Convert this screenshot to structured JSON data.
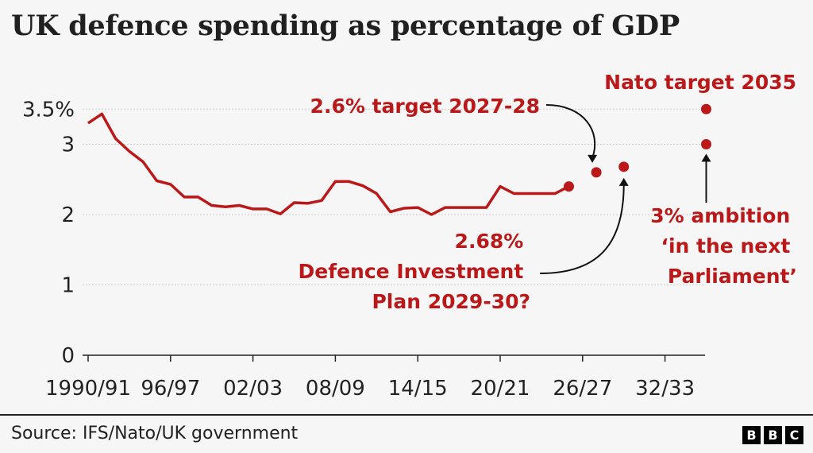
{
  "title": "UK defence spending as percentage of GDP",
  "source": "Source: IFS/Nato/UK government",
  "logo": [
    "B",
    "B",
    "C"
  ],
  "colors": {
    "line": "#bb1919",
    "grid": "#cccccc",
    "text": "#222222",
    "background": "#f6f6f6"
  },
  "chart_data": {
    "type": "line",
    "title": "UK defence spending as percentage of GDP",
    "xlabel": "",
    "ylabel": "",
    "ylim": [
      0,
      3.5
    ],
    "yticks": [
      0,
      1,
      2,
      3,
      3.5
    ],
    "ytick_labels": [
      "0",
      "1",
      "2",
      "3",
      "3.5%"
    ],
    "xticks": [
      1990,
      1996,
      2002,
      2008,
      2014,
      2020,
      2026,
      2032
    ],
    "xtick_labels": [
      "1990/91",
      "96/97",
      "02/03",
      "08/09",
      "14/15",
      "20/21",
      "26/27",
      "32/33"
    ],
    "grid": true,
    "series": [
      {
        "name": "",
        "x": [
          1990,
          1991,
          1992,
          1993,
          1994,
          1995,
          1996,
          1997,
          1998,
          1999,
          2000,
          2001,
          2002,
          2003,
          2004,
          2005,
          2006,
          2007,
          2008,
          2009,
          2010,
          2011,
          2012,
          2013,
          2014,
          2015,
          2016,
          2017,
          2018,
          2019,
          2020,
          2021,
          2022,
          2023,
          2024,
          2025
        ],
        "y": [
          3.3,
          3.43,
          3.08,
          2.9,
          2.75,
          2.48,
          2.43,
          2.25,
          2.25,
          2.13,
          2.11,
          2.13,
          2.08,
          2.08,
          2.01,
          2.17,
          2.16,
          2.2,
          2.47,
          2.47,
          2.41,
          2.3,
          2.04,
          2.09,
          2.1,
          2.0,
          2.1,
          2.1,
          2.1,
          2.1,
          2.4,
          2.3,
          2.3,
          2.3,
          2.3,
          2.4
        ]
      }
    ],
    "points": [
      {
        "x": 2025,
        "y": 2.4
      },
      {
        "x": 2027,
        "y": 2.6,
        "label": "2.6% target 2027-28"
      },
      {
        "x": 2029,
        "y": 2.68,
        "label": [
          "2.68%",
          "Defence Investment",
          "Plan 2029-30?"
        ]
      },
      {
        "x": 2035,
        "y": 3.5,
        "label": "Nato target 2035"
      },
      {
        "x": 2035,
        "y": 3.0,
        "label": [
          "3% ambition",
          "‘in the next",
          "Parliament’"
        ]
      }
    ]
  }
}
